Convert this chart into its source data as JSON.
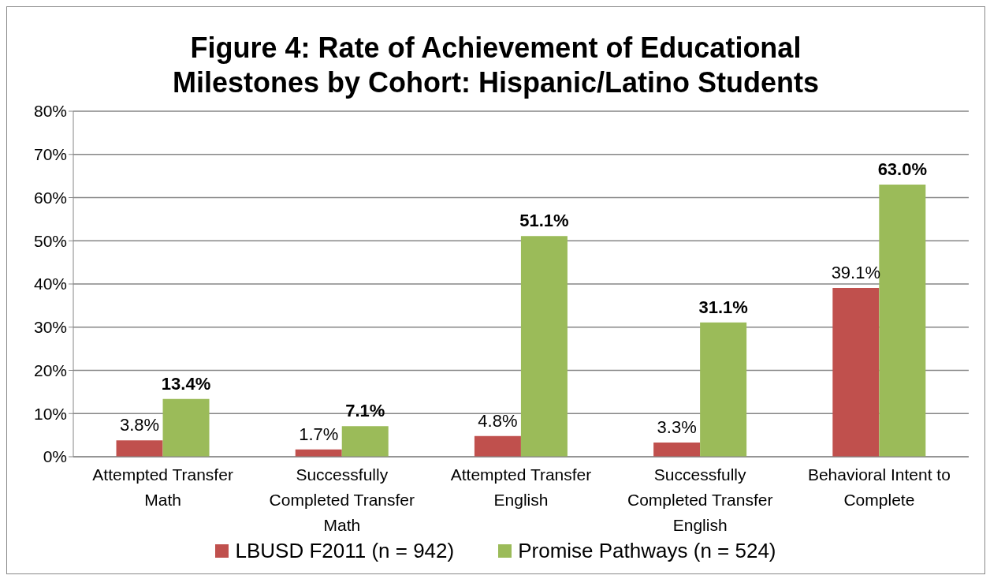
{
  "chart_data": {
    "type": "bar",
    "title": "Figure 4: Rate of Achievement of Educational Milestones by Cohort: Hispanic/Latino Students",
    "categories": [
      "Attempted Transfer Math",
      "Successfully Completed Transfer Math",
      "Attempted Transfer English",
      "Successfully Completed Transfer English",
      "Behavioral Intent to Complete"
    ],
    "series": [
      {
        "name": "LBUSD F2011 (n = 942)",
        "color": "#c0504d",
        "values": [
          3.8,
          1.7,
          4.8,
          3.3,
          39.1
        ],
        "value_labels": [
          "3.8%",
          "1.7%",
          "4.8%",
          "3.3%",
          "39.1%"
        ]
      },
      {
        "name": "Promise Pathways (n = 524)",
        "color": "#9bbb59",
        "values": [
          13.4,
          7.1,
          51.1,
          31.1,
          63.0
        ],
        "value_labels": [
          "13.4%",
          "7.1%",
          "51.1%",
          "31.1%",
          "63.0%"
        ]
      }
    ],
    "ylim": [
      0,
      80
    ],
    "yticks": [
      {
        "value": 0,
        "label": "0%"
      },
      {
        "value": 10,
        "label": "10%"
      },
      {
        "value": 20,
        "label": "20%"
      },
      {
        "value": 30,
        "label": "30%"
      },
      {
        "value": 40,
        "label": "40%"
      },
      {
        "value": 50,
        "label": "50%"
      },
      {
        "value": 60,
        "label": "60%"
      },
      {
        "value": 70,
        "label": "70%"
      },
      {
        "value": 80,
        "label": "80%"
      }
    ],
    "grid": "y",
    "legend": "bottom"
  }
}
